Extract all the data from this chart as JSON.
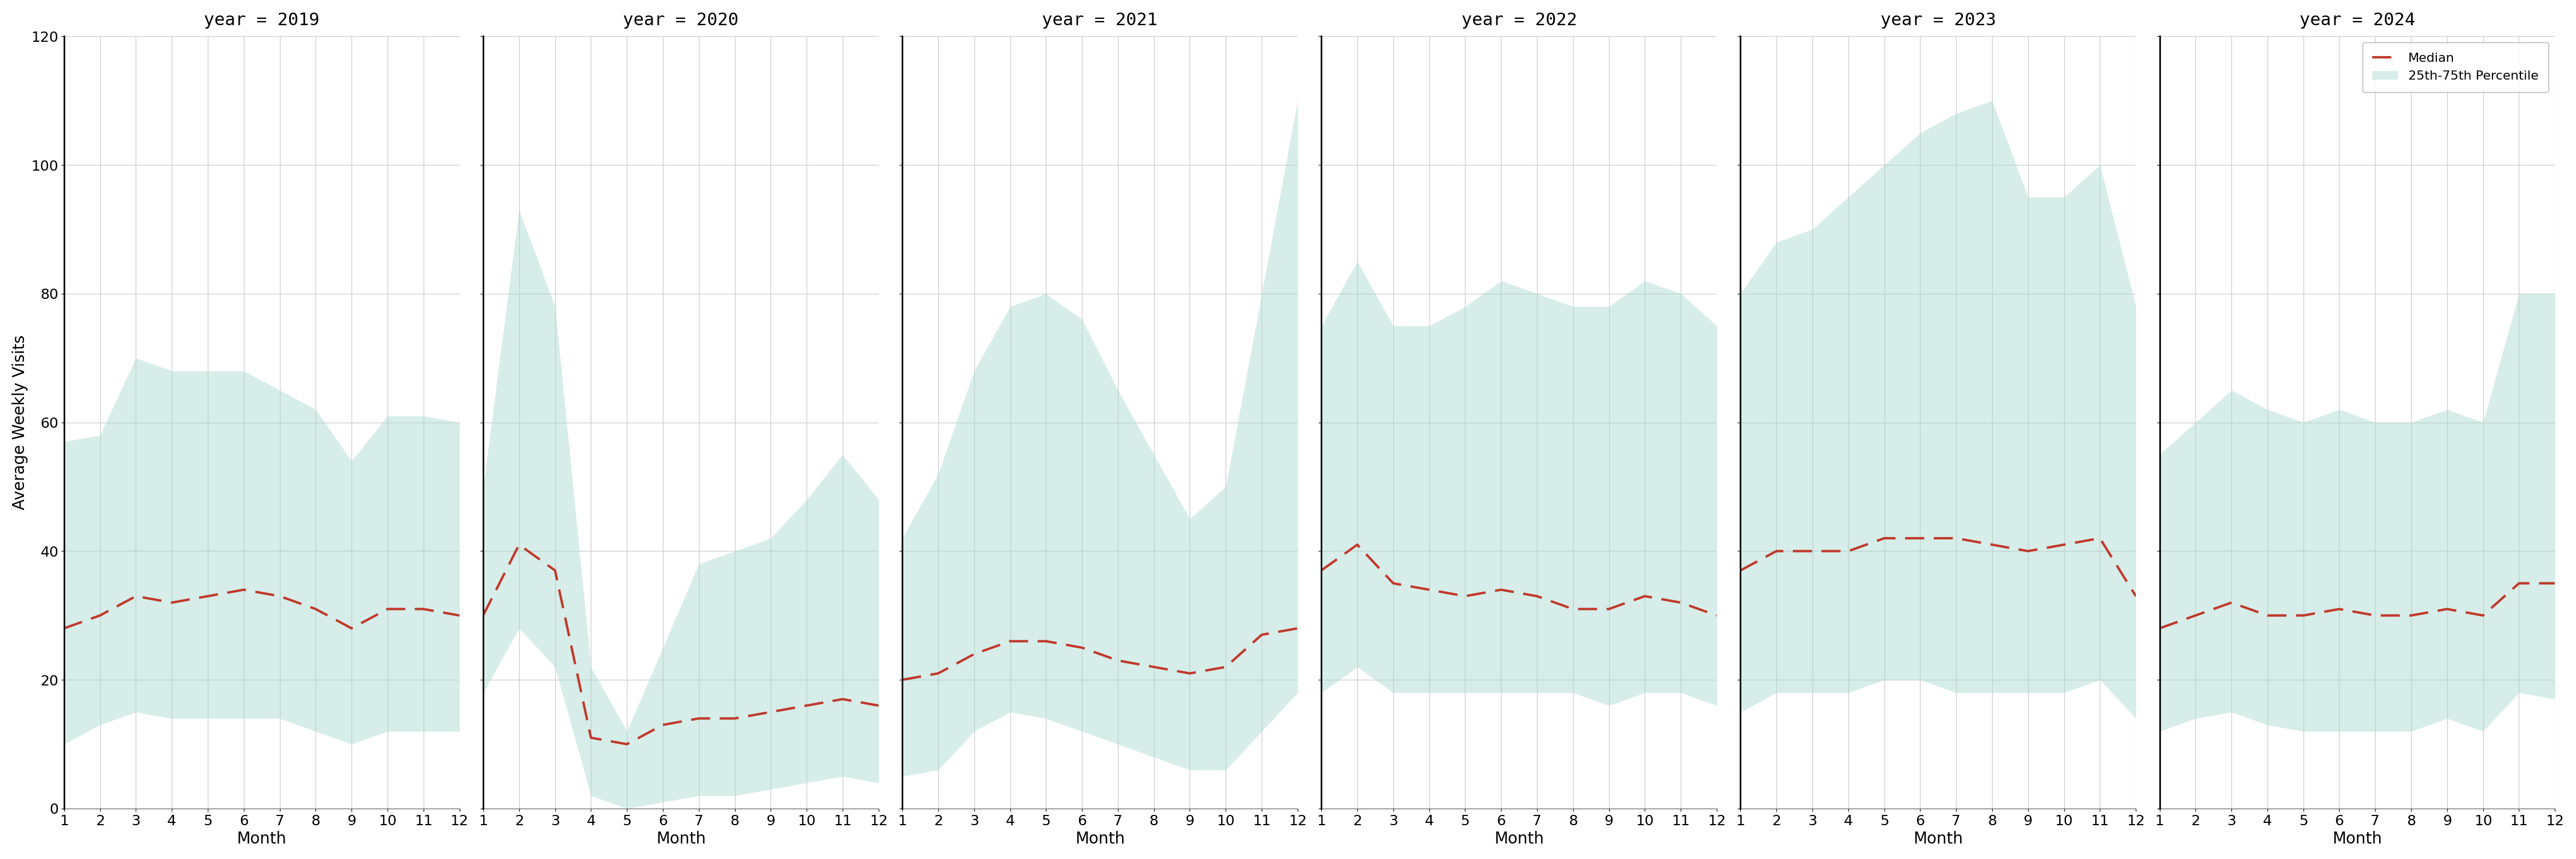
{
  "years": [
    2019,
    2020,
    2021,
    2022,
    2023,
    2024
  ],
  "months": [
    1,
    2,
    3,
    4,
    5,
    6,
    7,
    8,
    9,
    10,
    11,
    12
  ],
  "median": {
    "2019": [
      28,
      30,
      33,
      32,
      33,
      34,
      33,
      31,
      28,
      31,
      31,
      30
    ],
    "2020": [
      30,
      41,
      37,
      11,
      10,
      13,
      14,
      14,
      15,
      16,
      17,
      16
    ],
    "2021": [
      20,
      21,
      24,
      26,
      26,
      25,
      23,
      22,
      21,
      22,
      27,
      28
    ],
    "2022": [
      37,
      41,
      35,
      34,
      33,
      34,
      33,
      31,
      31,
      33,
      32,
      30
    ],
    "2023": [
      37,
      40,
      40,
      40,
      42,
      42,
      42,
      41,
      40,
      41,
      42,
      33
    ],
    "2024": [
      28,
      30,
      32,
      30,
      30,
      31,
      30,
      30,
      31,
      30,
      35,
      35
    ]
  },
  "q25": {
    "2019": [
      10,
      13,
      15,
      14,
      14,
      14,
      14,
      12,
      10,
      12,
      12,
      12
    ],
    "2020": [
      18,
      28,
      22,
      2,
      0,
      1,
      2,
      2,
      3,
      4,
      5,
      4
    ],
    "2021": [
      5,
      6,
      12,
      15,
      14,
      12,
      10,
      8,
      6,
      6,
      12,
      18
    ],
    "2022": [
      18,
      22,
      18,
      18,
      18,
      18,
      18,
      18,
      16,
      18,
      18,
      16
    ],
    "2023": [
      15,
      18,
      18,
      18,
      20,
      20,
      18,
      18,
      18,
      18,
      20,
      14
    ],
    "2024": [
      12,
      14,
      15,
      13,
      12,
      12,
      12,
      12,
      14,
      12,
      18,
      17
    ]
  },
  "q75": {
    "2019": [
      57,
      58,
      70,
      68,
      68,
      68,
      65,
      62,
      54,
      61,
      61,
      60
    ],
    "2020": [
      50,
      93,
      78,
      22,
      12,
      25,
      38,
      40,
      42,
      48,
      55,
      48
    ],
    "2021": [
      42,
      52,
      68,
      78,
      80,
      76,
      65,
      55,
      45,
      50,
      80,
      110
    ],
    "2022": [
      75,
      85,
      75,
      75,
      78,
      82,
      80,
      78,
      78,
      82,
      80,
      75
    ],
    "2023": [
      80,
      88,
      90,
      95,
      100,
      105,
      108,
      110,
      95,
      95,
      100,
      78
    ],
    "2024": [
      55,
      60,
      65,
      62,
      60,
      62,
      60,
      60,
      62,
      60,
      80,
      80
    ]
  },
  "ylim": [
    0,
    120
  ],
  "yticks": [
    0,
    20,
    40,
    60,
    80,
    100,
    120
  ],
  "fill_color": "#a8d8d0",
  "fill_alpha": 0.45,
  "median_color": "#c0392b",
  "title_fontsize": 22,
  "label_fontsize": 20,
  "tick_fontsize": 18,
  "ylabel": "Average Weekly Visits",
  "xlabel": "Month",
  "legend_labels": [
    "Median",
    "25th-75th Percentile"
  ]
}
